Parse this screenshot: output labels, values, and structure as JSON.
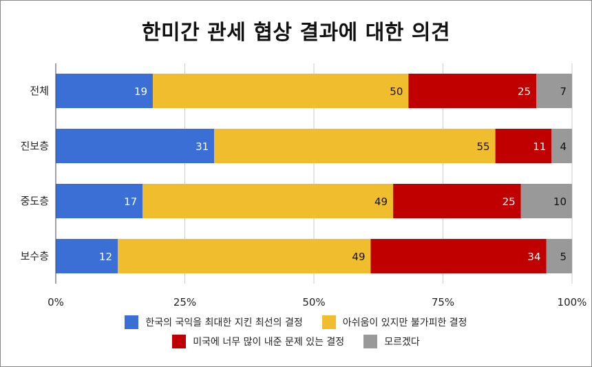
{
  "chart_data": {
    "type": "bar",
    "orientation": "horizontal",
    "stacked": true,
    "title": "한미간 관세 협상 결과에 대한 의견",
    "categories": [
      "전체",
      "진보층",
      "중도층",
      "보수층"
    ],
    "series": [
      {
        "name": "한국의 국익을 최대한 지킨 최선의 결정",
        "color": "#3b6fd6",
        "values": [
          19,
          31,
          17,
          12
        ]
      },
      {
        "name": "아쉬움이 있지만 불가피한 결정",
        "color": "#f0bd2f",
        "values": [
          50,
          55,
          49,
          49
        ]
      },
      {
        "name": "미국에 너무 많이 내준 문제 있는 결정",
        "color": "#c00000",
        "values": [
          25,
          11,
          25,
          34
        ]
      },
      {
        "name": "모르겠다",
        "color": "#999999",
        "values": [
          7,
          4,
          10,
          5
        ]
      }
    ],
    "value_label_colors": [
      "#ffffff",
      "#111111",
      "#ffffff",
      "#111111"
    ],
    "x_ticks": [
      "0%",
      "25%",
      "50%",
      "75%",
      "100%"
    ],
    "xlim": [
      0,
      100
    ],
    "grid": true,
    "legend_position": "bottom"
  }
}
